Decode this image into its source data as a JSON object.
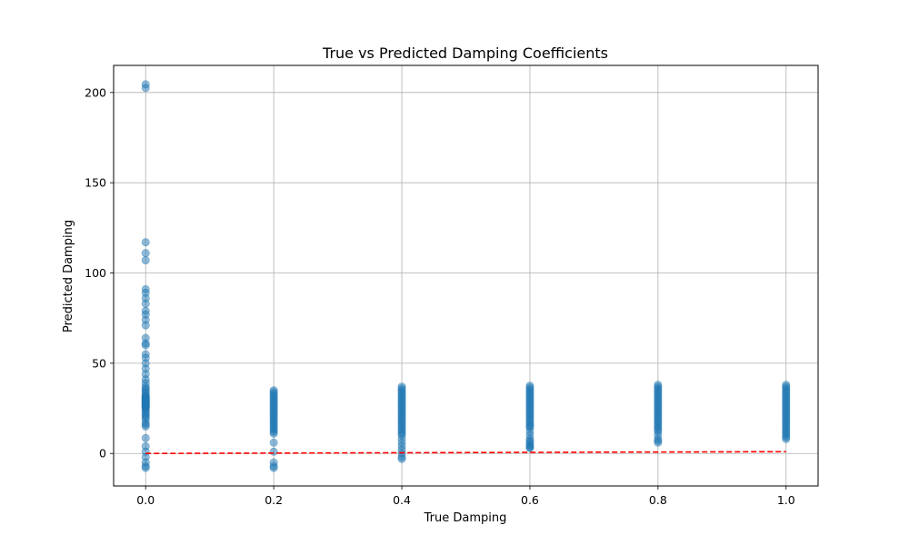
{
  "chart_data": {
    "type": "scatter",
    "title": "True vs Predicted Damping Coefficients",
    "xlabel": "True Damping",
    "ylabel": "Predicted Damping",
    "xlim": [
      -0.05,
      1.05
    ],
    "ylim": [
      -18,
      215
    ],
    "xticks": [
      0.0,
      0.2,
      0.4,
      0.6,
      0.8,
      1.0
    ],
    "xtick_labels": [
      "0.0",
      "0.2",
      "0.4",
      "0.6",
      "0.8",
      "1.0"
    ],
    "yticks": [
      0,
      50,
      100,
      150,
      200
    ],
    "ytick_labels": [
      "0",
      "50",
      "100",
      "150",
      "200"
    ],
    "grid": true,
    "point_color": "#1f77b4",
    "reference_line_color": "#ff0000",
    "series": [
      {
        "x": [
          0.0,
          0.0,
          0.0,
          0.0,
          0.0,
          0.0,
          0.0,
          0.0,
          0.0,
          0.0,
          0.0,
          0.0,
          0.0,
          0.0,
          0.0,
          0.0,
          0.0,
          0.0,
          0.0,
          0.0,
          0.0,
          0.0,
          0.0,
          0.0,
          0.0,
          0.0,
          0.0,
          0.0,
          0.0,
          0.0,
          0.0,
          0.0,
          0.0,
          0.0,
          0.0,
          0.0,
          0.0,
          0.0,
          0.0,
          0.0,
          0.0,
          0.0,
          0.0,
          0.0,
          0.0,
          0.0,
          0.0,
          0.0,
          0.0,
          0.0,
          0.0,
          0.0,
          0.0,
          0.0,
          0.0,
          0.0,
          0.0,
          0.0,
          0.0,
          0.0,
          0.0,
          0.0,
          0.0,
          0.0,
          0.2,
          0.2,
          0.2,
          0.2,
          0.2,
          0.2,
          0.2,
          0.2,
          0.2,
          0.2,
          0.2,
          0.2,
          0.2,
          0.2,
          0.2,
          0.2,
          0.2,
          0.2,
          0.2,
          0.2,
          0.2,
          0.2,
          0.2,
          0.2,
          0.2,
          0.2,
          0.2,
          0.2,
          0.2,
          0.2,
          0.4,
          0.4,
          0.4,
          0.4,
          0.4,
          0.4,
          0.4,
          0.4,
          0.4,
          0.4,
          0.4,
          0.4,
          0.4,
          0.4,
          0.4,
          0.4,
          0.4,
          0.4,
          0.4,
          0.4,
          0.4,
          0.4,
          0.4,
          0.4,
          0.4,
          0.4,
          0.4,
          0.4,
          0.4,
          0.4,
          0.4,
          0.4,
          0.4,
          0.4,
          0.4,
          0.6,
          0.6,
          0.6,
          0.6,
          0.6,
          0.6,
          0.6,
          0.6,
          0.6,
          0.6,
          0.6,
          0.6,
          0.6,
          0.6,
          0.6,
          0.6,
          0.6,
          0.6,
          0.6,
          0.6,
          0.6,
          0.6,
          0.6,
          0.6,
          0.6,
          0.6,
          0.6,
          0.6,
          0.6,
          0.6,
          0.6,
          0.6,
          0.6,
          0.6,
          0.8,
          0.8,
          0.8,
          0.8,
          0.8,
          0.8,
          0.8,
          0.8,
          0.8,
          0.8,
          0.8,
          0.8,
          0.8,
          0.8,
          0.8,
          0.8,
          0.8,
          0.8,
          0.8,
          0.8,
          0.8,
          0.8,
          0.8,
          0.8,
          0.8,
          0.8,
          0.8,
          0.8,
          0.8,
          0.8,
          0.8,
          1.0,
          1.0,
          1.0,
          1.0,
          1.0,
          1.0,
          1.0,
          1.0,
          1.0,
          1.0,
          1.0,
          1.0,
          1.0,
          1.0,
          1.0,
          1.0,
          1.0,
          1.0,
          1.0,
          1.0,
          1.0,
          1.0,
          1.0,
          1.0,
          1.0,
          1.0,
          1.0,
          1.0,
          1.0,
          1.0,
          1.0
        ],
        "y": [
          204.5,
          202.5,
          117,
          111,
          107,
          91,
          89,
          86,
          83,
          79,
          77,
          74,
          71,
          64,
          61,
          60,
          55,
          53,
          50,
          47,
          44,
          41,
          39,
          37,
          36,
          35,
          34,
          33,
          32,
          31.5,
          31,
          30.5,
          30,
          29.5,
          29,
          28.5,
          28,
          27.5,
          27,
          26.5,
          26,
          25,
          24,
          23,
          22,
          21,
          20,
          19,
          17,
          16,
          15,
          8.5,
          4,
          1,
          -2,
          -5,
          -7,
          -8,
          25.5,
          26.2,
          28.2,
          29.7,
          31.2,
          27.7,
          35,
          34,
          33,
          32,
          31,
          30,
          29,
          28,
          27,
          26,
          25,
          24,
          23,
          22,
          21,
          20,
          19,
          18,
          17,
          16,
          15,
          14,
          13,
          12,
          11,
          6,
          1,
          -5,
          -7,
          -8,
          37,
          36,
          35,
          34,
          33,
          32,
          31,
          30,
          29,
          28,
          27,
          26,
          25,
          24,
          23,
          22,
          21,
          20,
          19,
          18,
          17,
          16,
          15,
          14,
          13,
          12,
          11,
          10,
          8,
          6,
          4,
          2,
          0,
          -2,
          -3,
          37.5,
          36.5,
          35.5,
          34.5,
          33.5,
          32.5,
          31.5,
          30.5,
          29.5,
          28.5,
          27.5,
          26.5,
          25.5,
          24.5,
          23.5,
          22.5,
          21.5,
          20.5,
          19.5,
          18.5,
          17.5,
          16.5,
          15.5,
          14,
          12,
          10,
          8,
          7,
          6,
          5,
          4,
          3.5,
          3,
          15,
          38,
          37,
          36,
          35,
          34,
          33,
          32,
          31,
          30,
          29,
          28,
          27,
          26,
          25,
          24,
          23,
          22,
          21,
          20,
          19,
          18,
          17,
          16,
          15,
          14,
          13,
          12,
          10,
          8,
          7,
          6,
          38,
          37,
          36,
          35,
          34,
          33,
          32,
          31,
          30,
          29,
          28,
          27,
          26,
          25,
          24,
          23,
          22,
          21,
          20,
          19,
          18,
          17,
          16,
          15,
          14,
          13,
          12,
          11,
          10,
          9,
          8
        ]
      }
    ],
    "reference_line": {
      "x": [
        0.0,
        1.0
      ],
      "y": [
        0.0,
        1.0
      ]
    }
  }
}
